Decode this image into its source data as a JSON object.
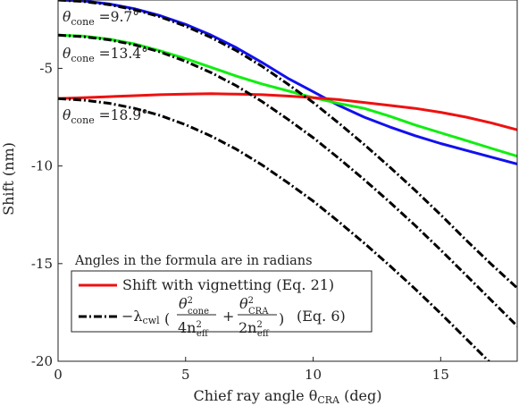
{
  "chart_data": {
    "type": "line",
    "xlabel": "Chief ray angle θCRA (deg)",
    "xlabel_parts": {
      "main": "Chief ray angle θ",
      "sub": "CRA",
      "unit": " (deg)"
    },
    "ylabel": "Shift (nm)",
    "xlim": [
      0,
      18
    ],
    "ylim": [
      -20,
      -1.5
    ],
    "xticks": [
      0,
      5,
      10,
      15
    ],
    "yticks": [
      -5,
      -10,
      -15,
      -20
    ],
    "xtick_labels": [
      "0",
      "5",
      "10",
      "15"
    ],
    "ytick_labels": [
      "-5",
      "-10",
      "-15",
      "-20"
    ],
    "grid": false,
    "legend": {
      "placement": "bottom-left",
      "note": "Angles in the formula are in radians",
      "entries": [
        {
          "label": "Shift with vignetting (Eq. 21)",
          "color": "#ee1111",
          "dash": "solid"
        },
        {
          "label": "−λcwl (θ²cone/4n²eff + θ²CRA/2n²eff) (Eq. 6)",
          "color": "#000000",
          "dash": "dashdot"
        }
      ],
      "formula_parts": {
        "minus_lambda": "−λ",
        "cwl": "cwl",
        "theta": "θ",
        "cone": "cone",
        "cra": "CRA",
        "two": "2",
        "four_n": "4n",
        "two_n": "2n",
        "eff": "eff",
        "plus": "+",
        "eq": "(Eq. 6)"
      }
    },
    "annotations": [
      {
        "theta": "θ",
        "sub": "cone",
        "value": " =9.7°"
      },
      {
        "theta": "θ",
        "sub": "cone",
        "value": " =13.4°"
      },
      {
        "theta": "θ",
        "sub": "cone",
        "value": " =18.9°"
      }
    ],
    "series": [
      {
        "color": "#1111ee",
        "style": "solid",
        "x": [
          0,
          1,
          2,
          3,
          4,
          5,
          6,
          7,
          8,
          9,
          10,
          11,
          12,
          13,
          14,
          15,
          16,
          17,
          18
        ],
        "y": [
          -1.5,
          -1.55,
          -1.7,
          -1.95,
          -2.3,
          -2.75,
          -3.3,
          -3.95,
          -4.7,
          -5.5,
          -6.2,
          -6.9,
          -7.5,
          -8.0,
          -8.45,
          -8.85,
          -9.2,
          -9.55,
          -9.9
        ]
      },
      {
        "color": "#11ee11",
        "style": "solid",
        "x": [
          0,
          1,
          2,
          3,
          4,
          5,
          6,
          7,
          8,
          9,
          10,
          11,
          12,
          13,
          14,
          15,
          16,
          17,
          18
        ],
        "y": [
          -3.3,
          -3.35,
          -3.5,
          -3.75,
          -4.1,
          -4.5,
          -4.95,
          -5.4,
          -5.8,
          -6.15,
          -6.5,
          -6.8,
          -7.05,
          -7.45,
          -7.9,
          -8.3,
          -8.7,
          -9.1,
          -9.5
        ]
      },
      {
        "color": "#ee1111",
        "style": "solid",
        "x": [
          0,
          1,
          2,
          3,
          4,
          5,
          6,
          7,
          8,
          9,
          10,
          11,
          12,
          13,
          14,
          15,
          16,
          17,
          18
        ],
        "y": [
          -6.55,
          -6.5,
          -6.45,
          -6.4,
          -6.35,
          -6.32,
          -6.3,
          -6.32,
          -6.35,
          -6.42,
          -6.5,
          -6.6,
          -6.75,
          -6.9,
          -7.05,
          -7.25,
          -7.5,
          -7.8,
          -8.15
        ]
      },
      {
        "color": "#000000",
        "style": "dashdot",
        "x": [
          0,
          1,
          2,
          3,
          4,
          5,
          6,
          7,
          8,
          9,
          10,
          11,
          12,
          13,
          14,
          15,
          16,
          17,
          18
        ],
        "y": [
          -1.5,
          -1.58,
          -1.74,
          -2.0,
          -2.36,
          -2.84,
          -3.42,
          -4.1,
          -4.9,
          -5.8,
          -6.75,
          -7.8,
          -8.9,
          -10.05,
          -11.25,
          -12.5,
          -13.8,
          -15.05,
          -16.25
        ]
      },
      {
        "color": "#000000",
        "style": "dashdot",
        "x": [
          0,
          1,
          2,
          3,
          4,
          5,
          6,
          7,
          8,
          9,
          10,
          11,
          12,
          13,
          14,
          15,
          16,
          17,
          18
        ],
        "y": [
          -3.3,
          -3.38,
          -3.54,
          -3.8,
          -4.16,
          -4.64,
          -5.22,
          -5.9,
          -6.7,
          -7.6,
          -8.55,
          -9.6,
          -10.7,
          -11.85,
          -13.05,
          -14.3,
          -15.6,
          -16.9,
          -18.2
        ]
      },
      {
        "color": "#000000",
        "style": "dashdot",
        "x": [
          0,
          1,
          2,
          3,
          4,
          5,
          6,
          7,
          8,
          9,
          10,
          11,
          12,
          13,
          14,
          15,
          16,
          17,
          18
        ],
        "y": [
          -6.55,
          -6.63,
          -6.79,
          -7.05,
          -7.41,
          -7.89,
          -8.47,
          -9.15,
          -9.95,
          -10.85,
          -11.8,
          -12.85,
          -13.95,
          -15.1,
          -16.3,
          -17.55,
          -18.85,
          -20.15,
          -21.45
        ]
      }
    ]
  }
}
